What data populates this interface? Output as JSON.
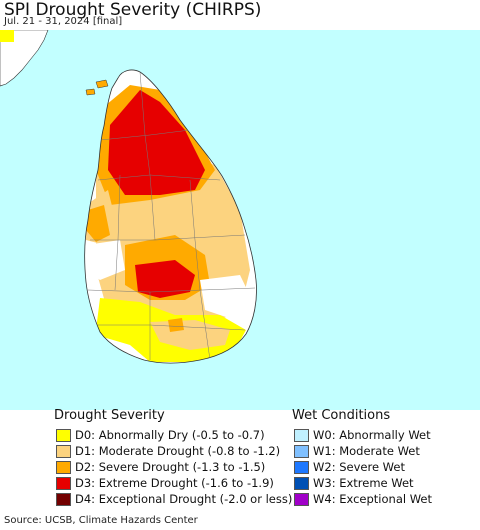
{
  "title": "SPI Drought Severity (CHIRPS)",
  "subtitle": "Jul. 21 - 31, 2024 [final]",
  "source": "Source: UCSB, Climate Hazards Center",
  "colors": {
    "ocean": "#c2ffff",
    "land": "#ffffff",
    "D0": "#ffff00",
    "D1": "#fcd37f",
    "D2": "#ffaa00",
    "D3": "#e60000",
    "D4": "#730000",
    "W0": "#c0f0ff",
    "W1": "#80c0ff",
    "W2": "#1e78ff",
    "W3": "#0050b4",
    "W4": "#a000c8"
  },
  "legend": {
    "drought_title": "Drought Severity",
    "wet_title": "Wet Conditions",
    "drought": [
      {
        "label": "D0: Abnormally Dry (-0.5 to -0.7)",
        "color": "#ffff00"
      },
      {
        "label": "D1: Moderate Drought (-0.8 to -1.2)",
        "color": "#fcd37f"
      },
      {
        "label": "D2: Severe Drought (-1.3 to -1.5)",
        "color": "#ffaa00"
      },
      {
        "label": "D3: Extreme Drought (-1.6 to -1.9)",
        "color": "#e60000"
      },
      {
        "label": "D4: Exceptional Drought (-2.0 or less)",
        "color": "#730000"
      }
    ],
    "wet": [
      {
        "label": "W0: Abnormally Wet",
        "color": "#c0f0ff"
      },
      {
        "label": "W1: Moderate Wet",
        "color": "#80c0ff"
      },
      {
        "label": "W2: Severe Wet",
        "color": "#1e78ff"
      },
      {
        "label": "W3: Extreme Wet",
        "color": "#0050b4"
      },
      {
        "label": "W4: Exceptional Wet",
        "color": "#a000c8"
      }
    ]
  }
}
